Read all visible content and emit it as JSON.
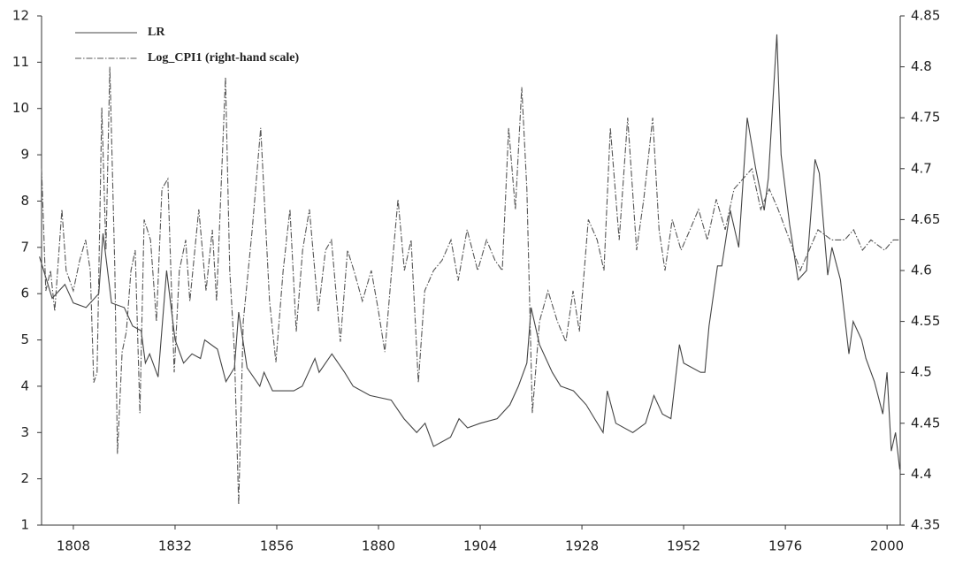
{
  "chart_data": {
    "type": "line",
    "xlim": [
      1800.5,
      2003.1
    ],
    "xticks": [
      1808,
      1832,
      1856,
      1880,
      1904,
      1928,
      1952,
      1976,
      2000
    ],
    "ylim": [
      1,
      12
    ],
    "yticks": [
      1,
      2,
      3,
      4,
      5,
      6,
      7,
      8,
      9,
      10,
      11,
      12
    ],
    "y2lim": [
      4.35,
      4.85
    ],
    "y2ticks": [
      4.35,
      4.4,
      4.45,
      4.5,
      4.55,
      4.6,
      4.65,
      4.7,
      4.75,
      4.8,
      4.85
    ],
    "legend": "upper left",
    "series": [
      {
        "name": "LR",
        "color": "#444444",
        "dash": "solid",
        "x": [
          1800,
          1803,
          1806,
          1808,
          1811,
          1814,
          1815,
          1817,
          1820,
          1822,
          1824,
          1825,
          1826,
          1828,
          1830,
          1832,
          1834,
          1836,
          1838,
          1839,
          1842,
          1844,
          1846,
          1847,
          1849,
          1852,
          1853,
          1855,
          1860,
          1862,
          1865,
          1866,
          1869,
          1872,
          1874,
          1878,
          1883,
          1886,
          1889,
          1891,
          1893,
          1897,
          1899,
          1901,
          1904,
          1908,
          1911,
          1913,
          1915,
          1916,
          1918,
          1921,
          1923,
          1926,
          1929,
          1931,
          1933,
          1934,
          1936,
          1940,
          1943,
          1945,
          1947,
          1949,
          1951,
          1952,
          1956,
          1957,
          1958,
          1960,
          1961,
          1963,
          1965,
          1967,
          1969,
          1971,
          1972,
          1974,
          1975,
          1977,
          1979,
          1981,
          1983,
          1984,
          1986,
          1987,
          1989,
          1991,
          1992,
          1994,
          1995,
          1997,
          1999,
          2000,
          2001,
          2002,
          2003
        ],
        "values": [
          6.8,
          5.9,
          6.2,
          5.8,
          5.7,
          6.0,
          7.3,
          5.8,
          5.7,
          5.3,
          5.2,
          4.5,
          4.7,
          4.2,
          6.5,
          5.0,
          4.5,
          4.7,
          4.6,
          5.0,
          4.8,
          4.1,
          4.4,
          5.6,
          4.4,
          4.0,
          4.3,
          3.9,
          3.9,
          4.0,
          4.6,
          4.3,
          4.7,
          4.3,
          4.0,
          3.8,
          3.7,
          3.3,
          3.0,
          3.2,
          2.7,
          2.9,
          3.3,
          3.1,
          3.2,
          3.3,
          3.6,
          4.0,
          4.5,
          5.7,
          4.9,
          4.3,
          4.0,
          3.9,
          3.6,
          3.3,
          3.0,
          3.9,
          3.2,
          3.0,
          3.2,
          3.8,
          3.4,
          3.3,
          4.9,
          4.5,
          4.3,
          4.3,
          5.3,
          6.6,
          6.6,
          7.8,
          7.0,
          9.8,
          8.7,
          7.8,
          8.5,
          11.6,
          9.0,
          7.5,
          6.3,
          6.5,
          8.9,
          8.6,
          6.4,
          7.0,
          6.3,
          4.7,
          5.4,
          5.0,
          4.6,
          4.1,
          3.4,
          4.3,
          2.6,
          3.0,
          2.2
        ]
      },
      {
        "name": "Log_CPI1 (right-hand scale)",
        "color": "#555555",
        "dash": "dashdot",
        "axis": "y2",
        "x": [
          1800.5,
          1801.5,
          1802.6,
          1803.6,
          1805.3,
          1806.3,
          1808.0,
          1809.5,
          1810.9,
          1812.0,
          1812.8,
          1813.6,
          1814.7,
          1815.7,
          1816.6,
          1817.8,
          1818.4,
          1819.5,
          1820.5,
          1821.6,
          1822.6,
          1823.7,
          1824.7,
          1826.2,
          1827.6,
          1828.9,
          1830.3,
          1831.8,
          1833.0,
          1834.5,
          1835.5,
          1837.6,
          1839.3,
          1840.8,
          1841.8,
          1843.9,
          1844.9,
          1846.0,
          1847.0,
          1848.1,
          1850.2,
          1852.2,
          1854.3,
          1855.8,
          1857.5,
          1859.1,
          1860.6,
          1862.1,
          1863.7,
          1865.8,
          1867.5,
          1868.9,
          1871.0,
          1872.7,
          1874.2,
          1876.2,
          1878.3,
          1880.0,
          1881.5,
          1883.1,
          1884.6,
          1886.1,
          1887.7,
          1889.4,
          1890.9,
          1893.0,
          1895.0,
          1897.1,
          1898.8,
          1900.9,
          1903.4,
          1905.5,
          1907.5,
          1909.2,
          1910.7,
          1912.3,
          1913.8,
          1915.0,
          1916.3,
          1918.0,
          1920.0,
          1922.2,
          1924.2,
          1925.9,
          1927.4,
          1929.5,
          1931.6,
          1933.2,
          1934.7,
          1936.8,
          1938.8,
          1940.9,
          1942.6,
          1944.7,
          1946.2,
          1947.6,
          1949.3,
          1951.4,
          1953.5,
          1955.5,
          1957.6,
          1959.7,
          1961.8,
          1963.9,
          1966.0,
          1968.1,
          1970.2,
          1972.2,
          1974.3,
          1977.0,
          1979.5,
          1981.6,
          1983.7,
          1986.9,
          1990.0,
          1992.1,
          1994.2,
          1996.2,
          1999.4,
          2001.5,
          2003.1
        ],
        "values": [
          4.7,
          4.58,
          4.6,
          4.56,
          4.66,
          4.6,
          4.58,
          4.61,
          4.63,
          4.6,
          4.49,
          4.5,
          4.76,
          4.62,
          4.8,
          4.6,
          4.42,
          4.52,
          4.54,
          4.6,
          4.62,
          4.46,
          4.65,
          4.63,
          4.55,
          4.68,
          4.69,
          4.5,
          4.6,
          4.63,
          4.57,
          4.66,
          4.58,
          4.64,
          4.57,
          4.79,
          4.6,
          4.52,
          4.37,
          4.55,
          4.64,
          4.74,
          4.57,
          4.51,
          4.6,
          4.66,
          4.54,
          4.62,
          4.66,
          4.56,
          4.62,
          4.63,
          4.53,
          4.62,
          4.6,
          4.57,
          4.6,
          4.56,
          4.52,
          4.6,
          4.67,
          4.6,
          4.63,
          4.49,
          4.58,
          4.6,
          4.61,
          4.63,
          4.59,
          4.64,
          4.6,
          4.63,
          4.61,
          4.6,
          4.74,
          4.66,
          4.78,
          4.68,
          4.46,
          4.55,
          4.58,
          4.55,
          4.53,
          4.58,
          4.54,
          4.65,
          4.63,
          4.6,
          4.74,
          4.63,
          4.75,
          4.62,
          4.67,
          4.75,
          4.64,
          4.6,
          4.65,
          4.62,
          4.64,
          4.66,
          4.63,
          4.67,
          4.64,
          4.68,
          4.69,
          4.7,
          4.66,
          4.68,
          4.66,
          4.63,
          4.6,
          4.62,
          4.64,
          4.63,
          4.63,
          4.64,
          4.62,
          4.63,
          4.62,
          4.63,
          4.63
        ]
      }
    ]
  }
}
